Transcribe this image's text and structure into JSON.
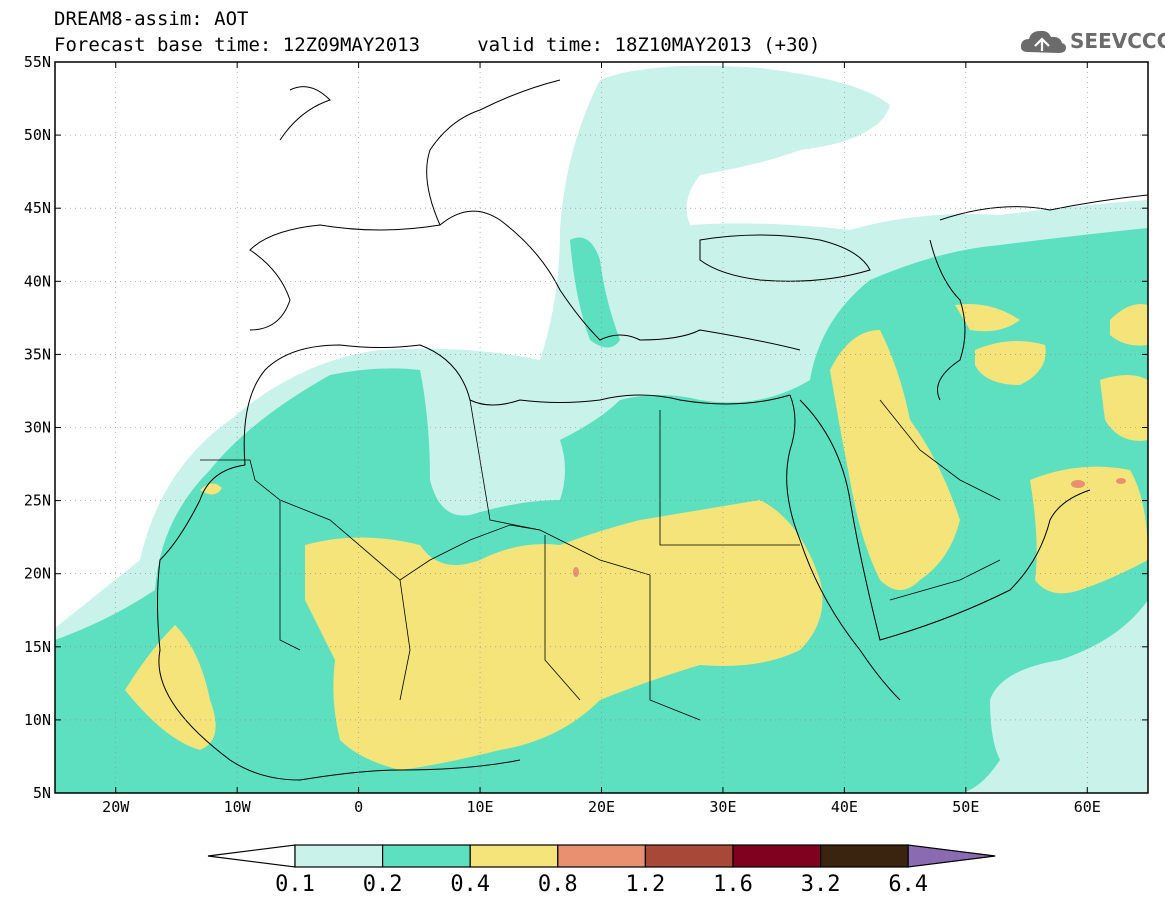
{
  "header": {
    "title_line1": "DREAM8-assim: AOT",
    "title_line2": "Forecast base time: 12Z09MAY2013     valid time: 18Z10MAY2013 (+30)",
    "logo_text": "SEEVCCC",
    "logo_icon": "cloud-icon"
  },
  "map": {
    "lon_range": [
      -25,
      65
    ],
    "lat_range": [
      5,
      55
    ],
    "lat_labels": [
      {
        "lat": 55,
        "text": "55N"
      },
      {
        "lat": 50,
        "text": "50N"
      },
      {
        "lat": 45,
        "text": "45N"
      },
      {
        "lat": 40,
        "text": "40N"
      },
      {
        "lat": 35,
        "text": "35N"
      },
      {
        "lat": 30,
        "text": "30N"
      },
      {
        "lat": 25,
        "text": "25N"
      },
      {
        "lat": 20,
        "text": "20N"
      },
      {
        "lat": 15,
        "text": "15N"
      },
      {
        "lat": 10,
        "text": "10N"
      },
      {
        "lat": 5,
        "text": "5N"
      }
    ],
    "lon_labels": [
      {
        "lon": -20,
        "text": "20W"
      },
      {
        "lon": -10,
        "text": "10W"
      },
      {
        "lon": 0,
        "text": "0"
      },
      {
        "lon": 10,
        "text": "10E"
      },
      {
        "lon": 20,
        "text": "20E"
      },
      {
        "lon": 30,
        "text": "30E"
      },
      {
        "lon": 40,
        "text": "40E"
      },
      {
        "lon": 50,
        "text": "50E"
      },
      {
        "lon": 60,
        "text": "60E"
      }
    ]
  },
  "colorbar": {
    "colors": [
      "#c8f2ea",
      "#5ce0c0",
      "#f5e47a",
      "#e89070",
      "#a84838",
      "#800020",
      "#3a2410",
      "#8a6ab0"
    ],
    "labels": [
      "0.1",
      "0.2",
      "0.4",
      "0.8",
      "1.2",
      "1.6",
      "3.2",
      "6.4"
    ]
  }
}
